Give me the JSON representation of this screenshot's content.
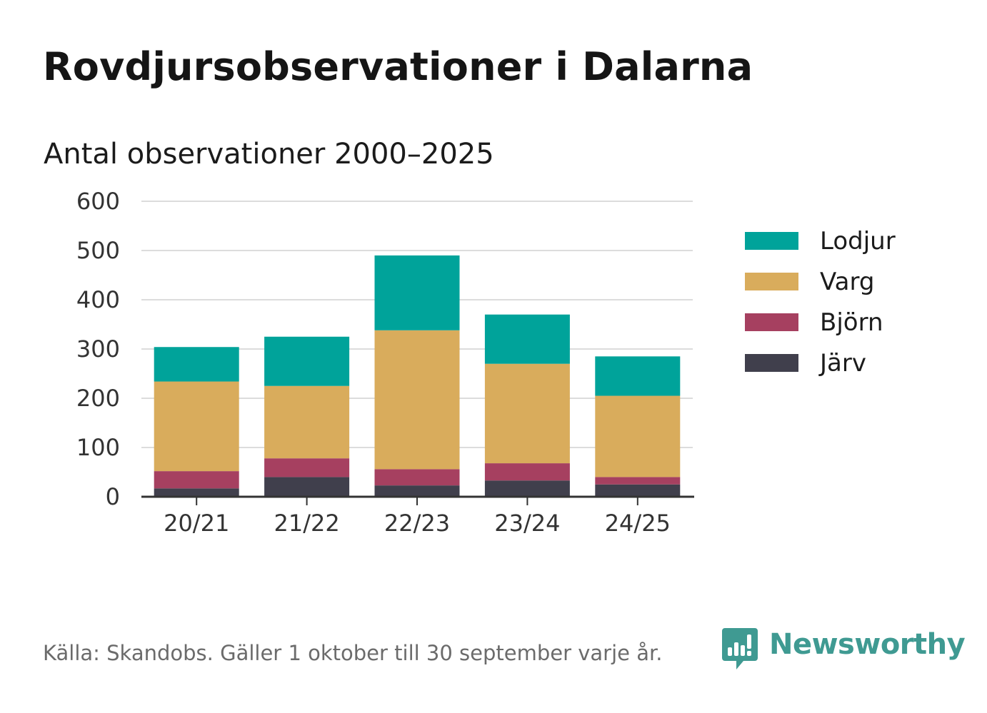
{
  "title": "Rovdjursobservationer i Dalarna",
  "subtitle": "Antal observationer 2000–2025",
  "source": "Källa: Skandobs. Gäller 1 oktober till 30 september varje år.",
  "brand": {
    "name": "Newsworthy",
    "icon": "newsworthy-logo-icon",
    "color": "#3f9a92"
  },
  "chart_data": {
    "type": "bar",
    "stacked": true,
    "categories": [
      "20/21",
      "21/22",
      "22/23",
      "23/24",
      "24/25"
    ],
    "ylim": [
      0,
      600
    ],
    "yticks": [
      0,
      100,
      200,
      300,
      400,
      500,
      600
    ],
    "grid": true,
    "legend_position": "right",
    "series": [
      {
        "name": "Järv",
        "color": "#403f4c",
        "values": [
          17,
          40,
          23,
          33,
          25
        ]
      },
      {
        "name": "Björn",
        "color": "#a64060",
        "values": [
          35,
          38,
          33,
          35,
          15
        ]
      },
      {
        "name": "Varg",
        "color": "#d9ac5c",
        "values": [
          182,
          147,
          282,
          202,
          165
        ]
      },
      {
        "name": "Lodjur",
        "color": "#00a39a",
        "values": [
          70,
          100,
          152,
          100,
          80
        ]
      }
    ]
  }
}
